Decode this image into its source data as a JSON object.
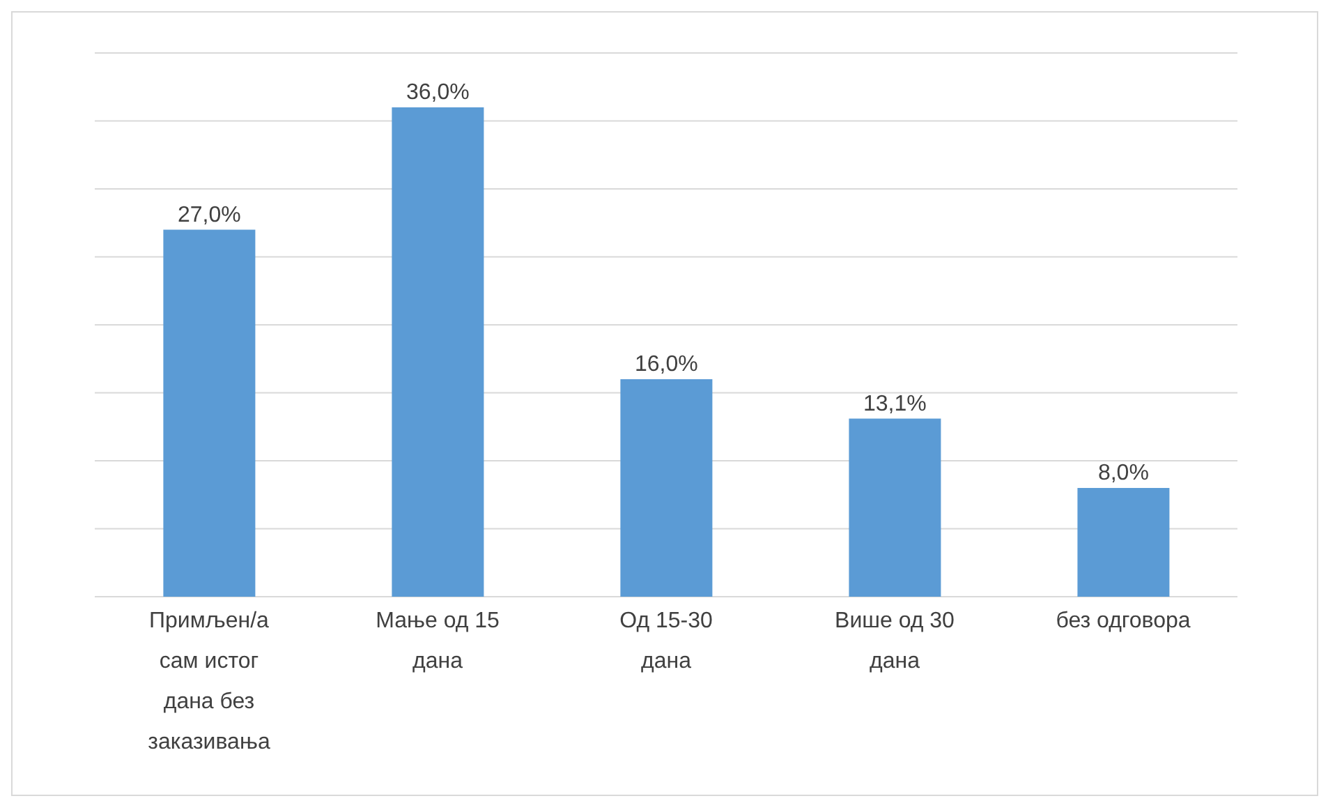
{
  "chart_data": {
    "type": "bar",
    "categories": [
      "Примљен/а сам истог дана без заказивања",
      "Мање од 15 дана",
      "Од 15-30 дана",
      "Више од 30 дана",
      "без одговора"
    ],
    "values": [
      27,
      36,
      16,
      13.1,
      8
    ],
    "value_labels": [
      "27,0%",
      "36,0%",
      "16,0%",
      "13,1%",
      "8,0%"
    ],
    "color": "#5b9bd5",
    "grid": "y",
    "tick_labels": "x",
    "legend": false
  }
}
